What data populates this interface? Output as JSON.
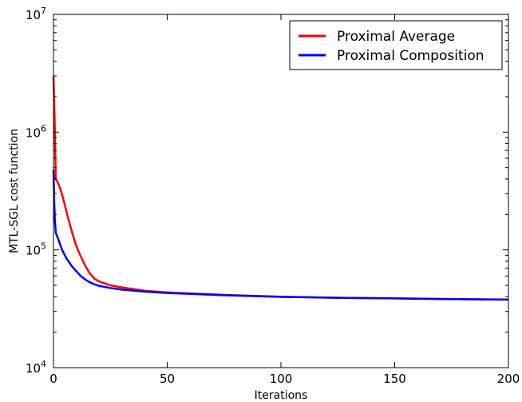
{
  "chart_data": {
    "type": "line",
    "title": "",
    "xlabel": "Iterations",
    "ylabel": "MTL-SGL cost function",
    "xlim": [
      0,
      200
    ],
    "ylim": [
      10000,
      10000000
    ],
    "yscale": "log",
    "grid": false,
    "legend_position": "top-right",
    "x_ticks": [
      0,
      50,
      100,
      150,
      200
    ],
    "y_ticks": [
      {
        "value": 10000,
        "base": "10",
        "exp": "4"
      },
      {
        "value": 100000,
        "base": "10",
        "exp": "5"
      },
      {
        "value": 1000000,
        "base": "10",
        "exp": "6"
      },
      {
        "value": 10000000,
        "base": "10",
        "exp": "7"
      }
    ],
    "series": [
      {
        "name": "Proximal Average",
        "color": "#ff0000",
        "points": [
          [
            0,
            3000000
          ],
          [
            0.5,
            1300000
          ],
          [
            1,
            400000
          ],
          [
            2,
            370000
          ],
          [
            3,
            330000
          ],
          [
            4,
            285000
          ],
          [
            5,
            240000
          ],
          [
            6,
            200000
          ],
          [
            7,
            170000
          ],
          [
            8,
            145000
          ],
          [
            9,
            125000
          ],
          [
            10,
            108000
          ],
          [
            12,
            88000
          ],
          [
            14,
            73000
          ],
          [
            16,
            63000
          ],
          [
            18,
            57000
          ],
          [
            20,
            54000
          ],
          [
            25,
            50000
          ],
          [
            30,
            48000
          ],
          [
            40,
            45000
          ],
          [
            50,
            43500
          ],
          [
            75,
            41500
          ],
          [
            100,
            40000
          ],
          [
            125,
            39200
          ],
          [
            150,
            38800
          ],
          [
            175,
            38200
          ],
          [
            200,
            37800
          ]
        ]
      },
      {
        "name": "Proximal Composition",
        "color": "#0000ff",
        "points": [
          [
            0,
            480000
          ],
          [
            0.3,
            270000
          ],
          [
            0.6,
            180000
          ],
          [
            1,
            140000
          ],
          [
            2,
            125000
          ],
          [
            3,
            110000
          ],
          [
            4,
            98000
          ],
          [
            5,
            90000
          ],
          [
            6,
            83000
          ],
          [
            8,
            73000
          ],
          [
            10,
            66000
          ],
          [
            12,
            60000
          ],
          [
            14,
            56000
          ],
          [
            16,
            53000
          ],
          [
            18,
            51000
          ],
          [
            20,
            49500
          ],
          [
            25,
            47500
          ],
          [
            30,
            46000
          ],
          [
            40,
            44200
          ],
          [
            50,
            43000
          ],
          [
            75,
            41200
          ],
          [
            100,
            39900
          ],
          [
            125,
            39200
          ],
          [
            150,
            38700
          ],
          [
            175,
            38200
          ],
          [
            200,
            37800
          ]
        ]
      }
    ]
  }
}
